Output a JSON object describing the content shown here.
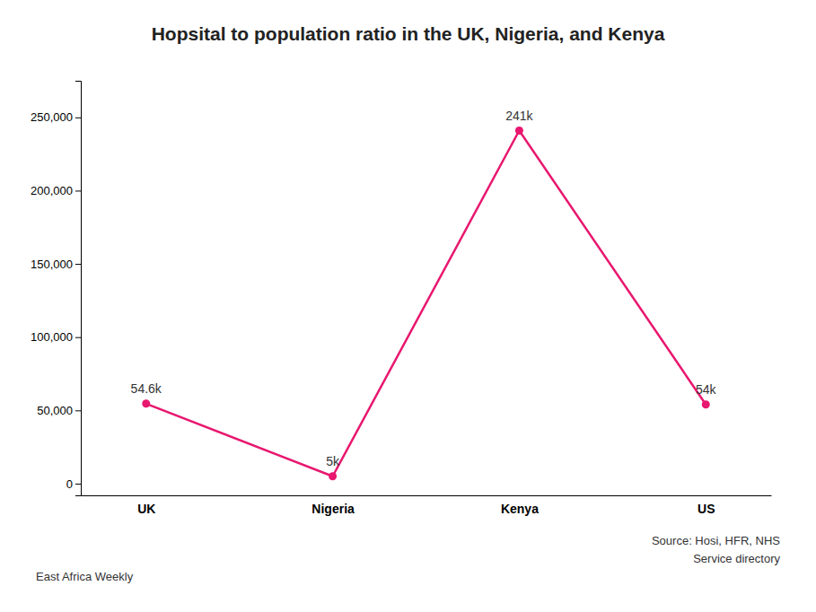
{
  "chart_data": {
    "type": "line",
    "title": "Hopsital to population ratio in the UK, Nigeria, and Kenya",
    "categories": [
      "UK",
      "Nigeria",
      "Kenya",
      "US"
    ],
    "values": [
      54600,
      5000,
      241000,
      54000
    ],
    "value_labels": [
      "54.6k",
      "5k",
      "241k",
      "54k"
    ],
    "data_labels": true,
    "color": "#E8176F",
    "marker": "circle",
    "ylim": [
      -8000,
      275000
    ],
    "yticks": [
      0,
      {
        "value": 50000,
        "label": "50,000"
      },
      {
        "value": 100000,
        "label": "100,000"
      },
      {
        "value": 150000,
        "label": "150,000"
      },
      {
        "value": 200000,
        "label": "200,000"
      },
      {
        "value": 250000,
        "label": "250,000"
      }
    ],
    "grid": false,
    "annotations": [
      "Source: Hosi, HFR, NHS",
      "Service directory",
      "East Africa Weekly"
    ]
  }
}
